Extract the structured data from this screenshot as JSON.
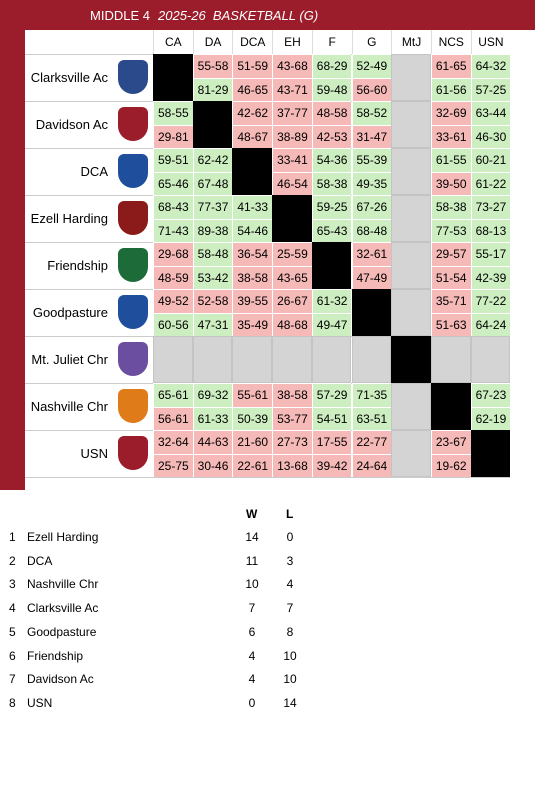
{
  "header": {
    "league": "MIDDLE 4",
    "title": "2025-26  BASKETBALL (G)"
  },
  "table": {
    "columns": [
      "CA",
      "DA",
      "DCA",
      "EH",
      "F",
      "G",
      "MtJ",
      "NCS",
      "USN"
    ],
    "rows": [
      {
        "team": "Clarksville Ac",
        "cells": [
          null,
          [
            "55-58",
            "81-29"
          ],
          [
            "51-59",
            "46-65"
          ],
          [
            "43-68",
            "43-71"
          ],
          [
            "68-29",
            "59-48"
          ],
          [
            "52-49",
            "56-60"
          ],
          null,
          [
            "61-65",
            "61-56"
          ],
          [
            "64-32",
            "57-25"
          ]
        ]
      },
      {
        "team": "Davidson Ac",
        "cells": [
          [
            "58-55",
            "29-81"
          ],
          null,
          [
            "42-62",
            "48-67"
          ],
          [
            "37-77",
            "38-89"
          ],
          [
            "48-58",
            "42-53"
          ],
          [
            "58-52",
            "31-47"
          ],
          null,
          [
            "32-69",
            "33-61"
          ],
          [
            "63-44",
            "46-30"
          ]
        ]
      },
      {
        "team": "DCA",
        "cells": [
          [
            "59-51",
            "65-46"
          ],
          [
            "62-42",
            "67-48"
          ],
          null,
          [
            "33-41",
            "46-54"
          ],
          [
            "54-36",
            "58-38"
          ],
          [
            "55-39",
            "49-35"
          ],
          null,
          [
            "61-55",
            "39-50"
          ],
          [
            "60-21",
            "61-22"
          ]
        ]
      },
      {
        "team": "Ezell Harding",
        "cells": [
          [
            "68-43",
            "71-43"
          ],
          [
            "77-37",
            "89-38"
          ],
          [
            "41-33",
            "54-46"
          ],
          null,
          [
            "59-25",
            "65-43"
          ],
          [
            "67-26",
            "68-48"
          ],
          null,
          [
            "58-38",
            "77-53"
          ],
          [
            "73-27",
            "68-13"
          ]
        ]
      },
      {
        "team": "Friendship",
        "cells": [
          [
            "29-68",
            "48-59"
          ],
          [
            "58-48",
            "53-42"
          ],
          [
            "36-54",
            "38-58"
          ],
          [
            "25-59",
            "43-65"
          ],
          null,
          [
            "32-61",
            "47-49"
          ],
          null,
          [
            "29-57",
            "51-54"
          ],
          [
            "55-17",
            "42-39"
          ]
        ]
      },
      {
        "team": "Goodpasture",
        "cells": [
          [
            "49-52",
            "60-56"
          ],
          [
            "52-58",
            "47-31"
          ],
          [
            "39-55",
            "35-49"
          ],
          [
            "26-67",
            "48-68"
          ],
          [
            "61-32",
            "49-47"
          ],
          null,
          null,
          [
            "35-71",
            "51-63"
          ],
          [
            "77-22",
            "64-24"
          ]
        ]
      },
      {
        "team": "Mt. Juliet Chr",
        "cells": [
          null,
          null,
          null,
          null,
          null,
          null,
          null,
          null,
          null
        ]
      },
      {
        "team": "Nashville Chr",
        "cells": [
          [
            "65-61",
            "56-61"
          ],
          [
            "69-32",
            "61-33"
          ],
          [
            "55-61",
            "50-39"
          ],
          [
            "38-58",
            "53-77"
          ],
          [
            "57-29",
            "54-51"
          ],
          [
            "71-35",
            "63-51"
          ],
          null,
          null,
          [
            "67-23",
            "62-19"
          ]
        ]
      },
      {
        "team": "USN",
        "cells": [
          [
            "32-64",
            "25-75"
          ],
          [
            "44-63",
            "30-46"
          ],
          [
            "21-60",
            "22-61"
          ],
          [
            "27-73",
            "13-68"
          ],
          [
            "17-55",
            "39-42"
          ],
          [
            "22-77",
            "24-64"
          ],
          null,
          [
            "23-67",
            "19-62"
          ],
          null
        ]
      }
    ]
  },
  "standings": {
    "columns": [
      "W",
      "L"
    ],
    "rows": [
      {
        "rank": 1,
        "team": "Ezell Harding",
        "w": 14,
        "l": 0
      },
      {
        "rank": 2,
        "team": "DCA",
        "w": 11,
        "l": 3
      },
      {
        "rank": 3,
        "team": "Nashville Chr",
        "w": 10,
        "l": 4
      },
      {
        "rank": 4,
        "team": "Clarksville Ac",
        "w": 7,
        "l": 7
      },
      {
        "rank": 5,
        "team": "Goodpasture",
        "w": 6,
        "l": 8
      },
      {
        "rank": 6,
        "team": "Friendship",
        "w": 4,
        "l": 10
      },
      {
        "rank": 7,
        "team": "Davidson Ac",
        "w": 4,
        "l": 10
      },
      {
        "rank": 8,
        "team": "USN",
        "w": 0,
        "l": 14
      }
    ]
  }
}
